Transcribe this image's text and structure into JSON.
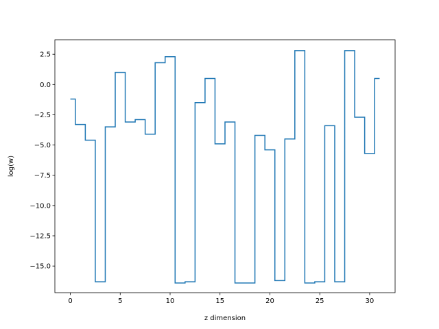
{
  "chart_data": {
    "type": "line",
    "drawstyle": "steps-mid",
    "title": "",
    "xlabel": "z dimension",
    "ylabel": "log(w)",
    "xlim": [
      -1.55,
      32.55
    ],
    "ylim": [
      -17.2,
      3.7
    ],
    "grid": false,
    "line_color": "#1f77b4",
    "xticks": [
      0,
      5,
      10,
      15,
      20,
      25,
      30
    ],
    "xtick_labels": [
      "0",
      "5",
      "10",
      "15",
      "20",
      "25",
      "30"
    ],
    "yticks": [
      2.5,
      0,
      -2.5,
      -5,
      -7.5,
      -10,
      -12.5,
      -15
    ],
    "ytick_labels": [
      "2.5",
      "0.0",
      "−2.5",
      "−5.0",
      "−7.5",
      "−10.0",
      "−12.5",
      "−15.0"
    ],
    "series": [
      {
        "x": [
          0,
          1,
          2,
          3,
          4,
          5,
          6,
          7,
          8,
          9,
          10,
          11,
          12,
          13,
          14,
          15,
          16,
          17,
          18,
          19,
          20,
          21,
          22,
          23,
          24,
          25,
          26,
          27,
          28,
          29,
          30,
          31
        ],
        "values": [
          -1.2,
          -3.3,
          -4.6,
          -16.3,
          -3.5,
          1.0,
          -3.1,
          -2.9,
          -4.1,
          1.8,
          2.3,
          -16.4,
          -16.3,
          -1.5,
          0.5,
          -4.9,
          -3.1,
          -16.4,
          -16.4,
          -4.2,
          -5.4,
          -16.2,
          -4.5,
          2.8,
          -16.4,
          -16.3,
          -3.4,
          -16.3,
          2.8,
          -2.7,
          -5.7,
          0.5
        ]
      }
    ]
  }
}
